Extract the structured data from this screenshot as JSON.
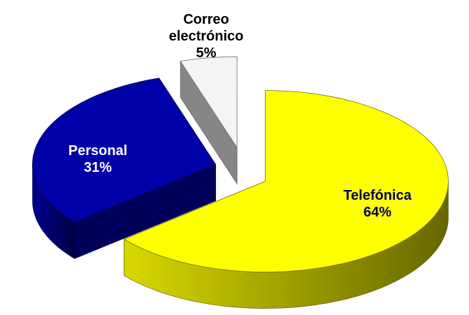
{
  "chart_data": {
    "type": "pie",
    "categories": [
      "Telefónica",
      "Personal",
      "Correo electrónico"
    ],
    "values": [
      64,
      31,
      5
    ],
    "value_labels": [
      "64%",
      "31%",
      "5%"
    ],
    "colors": [
      "#ffff00",
      "#0000a8",
      "#f4f4f4"
    ]
  }
}
